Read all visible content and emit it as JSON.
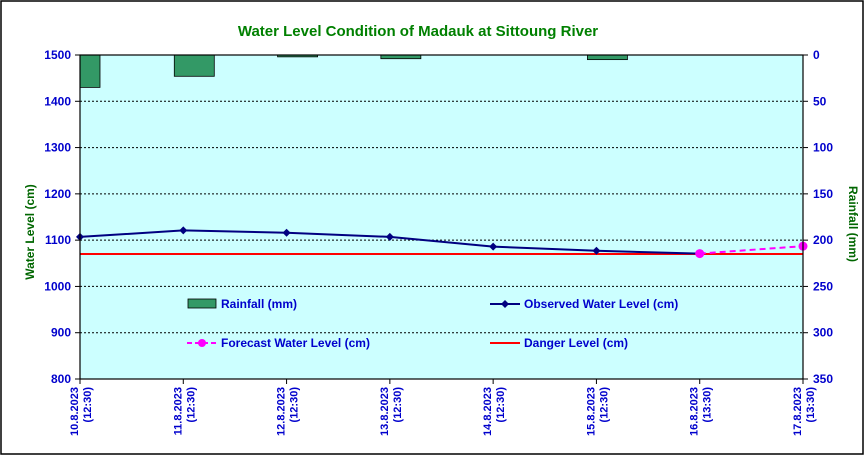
{
  "chart_data": {
    "type": "line",
    "title": "Water Level Condition of Madauk at Sittoung River",
    "ylabel": "Water Level (cm)",
    "y2label": "Rainfall (mm)",
    "ylim": [
      800,
      1500
    ],
    "y2lim": [
      0,
      350
    ],
    "y2_inverted": true,
    "yticks": [
      "1500",
      "1400",
      "1300",
      "1200",
      "1100",
      "1000",
      "900",
      "800"
    ],
    "y2ticks": [
      "0",
      "50",
      "100",
      "150",
      "200",
      "250",
      "300",
      "350"
    ],
    "categories": [
      [
        "10.8.2023",
        "(12:30)"
      ],
      [
        "11.8.2023",
        "(12:30)"
      ],
      [
        "12.8.2023",
        "(12:30)"
      ],
      [
        "13.8.2023",
        "(12:30)"
      ],
      [
        "14.8.2023",
        "(12:30)"
      ],
      [
        "15.8.2023",
        "(12:30)"
      ],
      [
        "16.8.2023",
        "(13:30)"
      ],
      [
        "17.8.2023",
        "(13:30)"
      ]
    ],
    "rainfall": [
      35,
      23,
      2,
      4,
      0,
      5,
      0
    ],
    "observed": [
      1107,
      1121,
      1116,
      1107,
      1086,
      1077,
      1071
    ],
    "forecast": [
      null,
      null,
      null,
      null,
      null,
      null,
      1071,
      1087
    ],
    "danger_level": 1070,
    "legend": {
      "rainfall": "Rainfall (mm)",
      "observed": "Observed Water Level (cm)",
      "forecast": "Forecast Water Level (cm)",
      "danger": "Danger Level (cm)"
    },
    "grid": true,
    "colors": {
      "plot_bg": "#ccffff",
      "rainfall_fill": "#339966",
      "observed": "#000080",
      "forecast": "#ff00ff",
      "danger": "#ff0000",
      "title": "#008000",
      "left_axis_text": "#0000cc",
      "right_axis_text": "#006600",
      "grid": "#000000"
    }
  }
}
